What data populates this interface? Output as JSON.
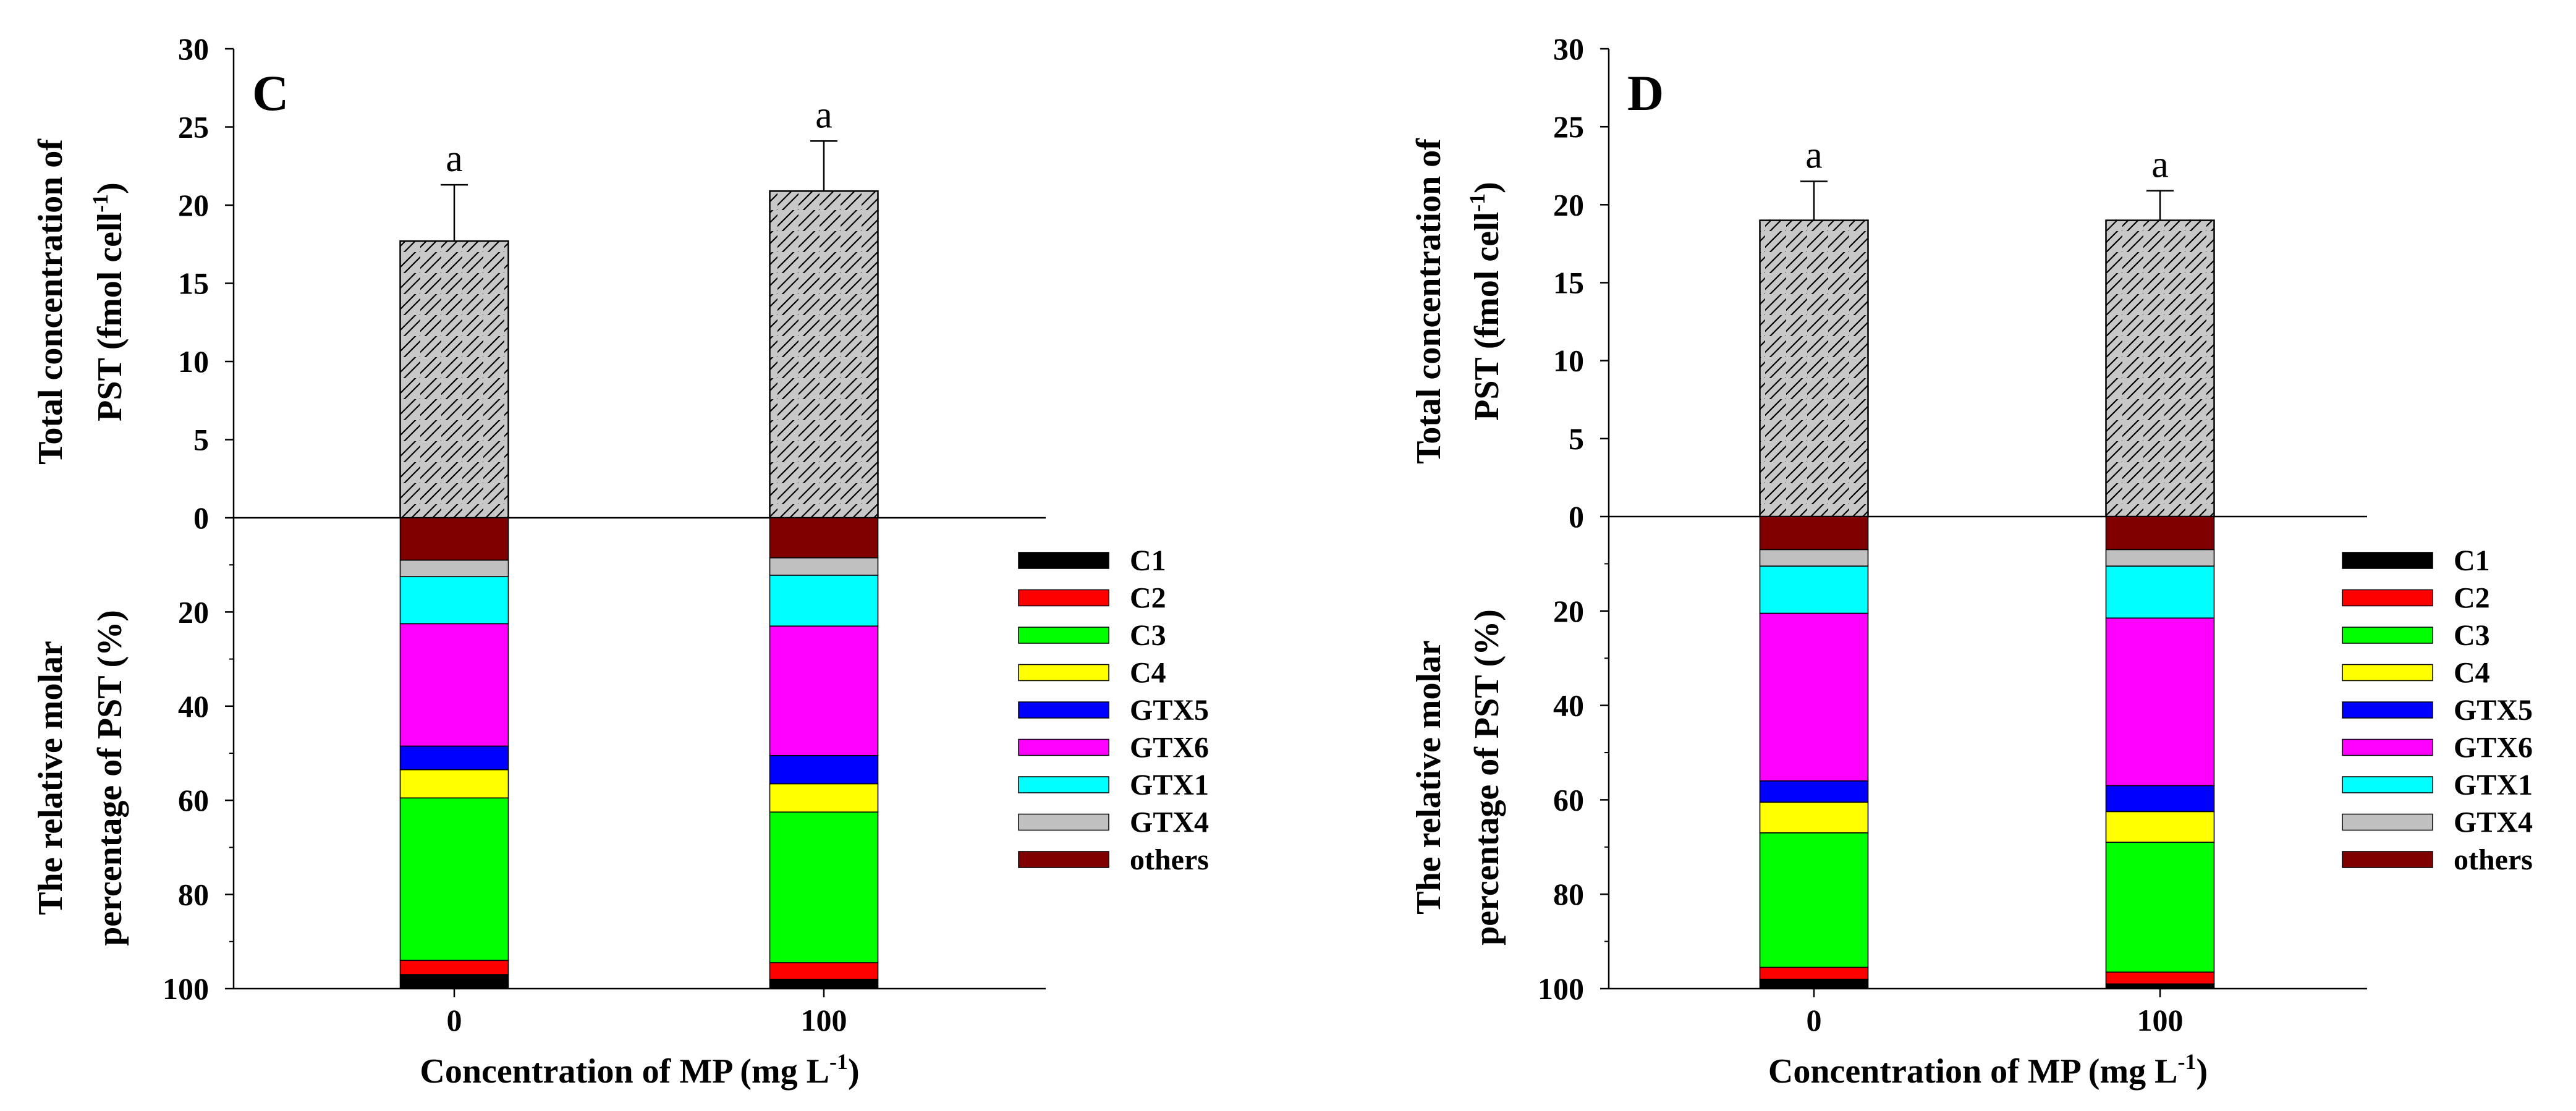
{
  "chart_data": [
    {
      "type": "bar",
      "panel_label": "C",
      "categories": [
        "0",
        "100"
      ],
      "xlabel": {
        "main": "Concentration of MP (mg L",
        "sup": "-1",
        "tail": ")"
      },
      "top": {
        "ylabel_line1": "Total concentration of",
        "ylabel_line2": {
          "main": "PST (fmol cell",
          "sup": "-1",
          "tail": ")"
        },
        "ylim": [
          0,
          30
        ],
        "yticks": [
          "0",
          "5",
          "10",
          "15",
          "20",
          "25",
          "30"
        ],
        "values": [
          17.7,
          20.9
        ],
        "errors": [
          3.6,
          3.2
        ],
        "significance": [
          "a",
          "a"
        ]
      },
      "bottom": {
        "ylabel_line1": "The relative molar",
        "ylabel_line2": "percentage  of PST (%)",
        "ylim": [
          0,
          100
        ],
        "yticks": [
          "20",
          "40",
          "60",
          "80",
          "100"
        ],
        "series": [
          {
            "name": "others",
            "values": [
              9.0,
              8.5
            ]
          },
          {
            "name": "GTX4",
            "values": [
              3.5,
              3.7
            ]
          },
          {
            "name": "GTX1",
            "values": [
              10.0,
              10.8
            ]
          },
          {
            "name": "GTX6",
            "values": [
              26.0,
              27.5
            ]
          },
          {
            "name": "GTX5",
            "values": [
              5.0,
              6.0
            ]
          },
          {
            "name": "C4",
            "values": [
              6.0,
              6.0
            ]
          },
          {
            "name": "C3",
            "values": [
              34.5,
              32.0
            ]
          },
          {
            "name": "C2",
            "values": [
              3.0,
              3.5
            ]
          },
          {
            "name": "C1",
            "values": [
              3.0,
              2.0
            ]
          }
        ]
      }
    },
    {
      "type": "bar",
      "panel_label": "D",
      "categories": [
        "0",
        "100"
      ],
      "xlabel": {
        "main": "Concentration of MP (mg L",
        "sup": "-1",
        "tail": ")"
      },
      "top": {
        "ylabel_line1": "Total concentration of",
        "ylabel_line2": {
          "main": "PST (fmol cell",
          "sup": "-1",
          "tail": ")"
        },
        "ylim": [
          0,
          30
        ],
        "yticks": [
          "0",
          "5",
          "10",
          "15",
          "20",
          "25",
          "30"
        ],
        "values": [
          19.0,
          19.0
        ],
        "errors": [
          2.5,
          1.9
        ],
        "significance": [
          "a",
          "a"
        ]
      },
      "bottom": {
        "ylabel_line1": "The relative molar",
        "ylabel_line2": "percentage  of PST (%)",
        "ylim": [
          0,
          100
        ],
        "yticks": [
          "20",
          "40",
          "60",
          "80",
          "100"
        ],
        "series": [
          {
            "name": "others",
            "values": [
              7.0,
              7.0
            ]
          },
          {
            "name": "GTX4",
            "values": [
              3.5,
              3.5
            ]
          },
          {
            "name": "GTX1",
            "values": [
              10.0,
              11.0
            ]
          },
          {
            "name": "GTX6",
            "values": [
              35.5,
              35.5
            ]
          },
          {
            "name": "GTX5",
            "values": [
              4.5,
              5.5
            ]
          },
          {
            "name": "C4",
            "values": [
              6.5,
              6.5
            ]
          },
          {
            "name": "C3",
            "values": [
              28.5,
              27.5
            ]
          },
          {
            "name": "C2",
            "values": [
              2.5,
              2.5
            ]
          },
          {
            "name": "C1",
            "values": [
              2.0,
              1.0
            ]
          }
        ]
      }
    }
  ],
  "legend": [
    {
      "name": "C1",
      "color": "#000000"
    },
    {
      "name": "C2",
      "color": "#ff0000"
    },
    {
      "name": "C3",
      "color": "#00ff00"
    },
    {
      "name": "C4",
      "color": "#ffff00"
    },
    {
      "name": "GTX5",
      "color": "#0000ff"
    },
    {
      "name": "GTX6",
      "color": "#ff00ff"
    },
    {
      "name": "GTX1",
      "color": "#00ffff"
    },
    {
      "name": "GTX4",
      "color": "#c0c0c0"
    },
    {
      "name": "others",
      "color": "#800000"
    }
  ],
  "colors": {
    "total_bar_fill": "#c8c8c8",
    "hatch": "#000000"
  }
}
